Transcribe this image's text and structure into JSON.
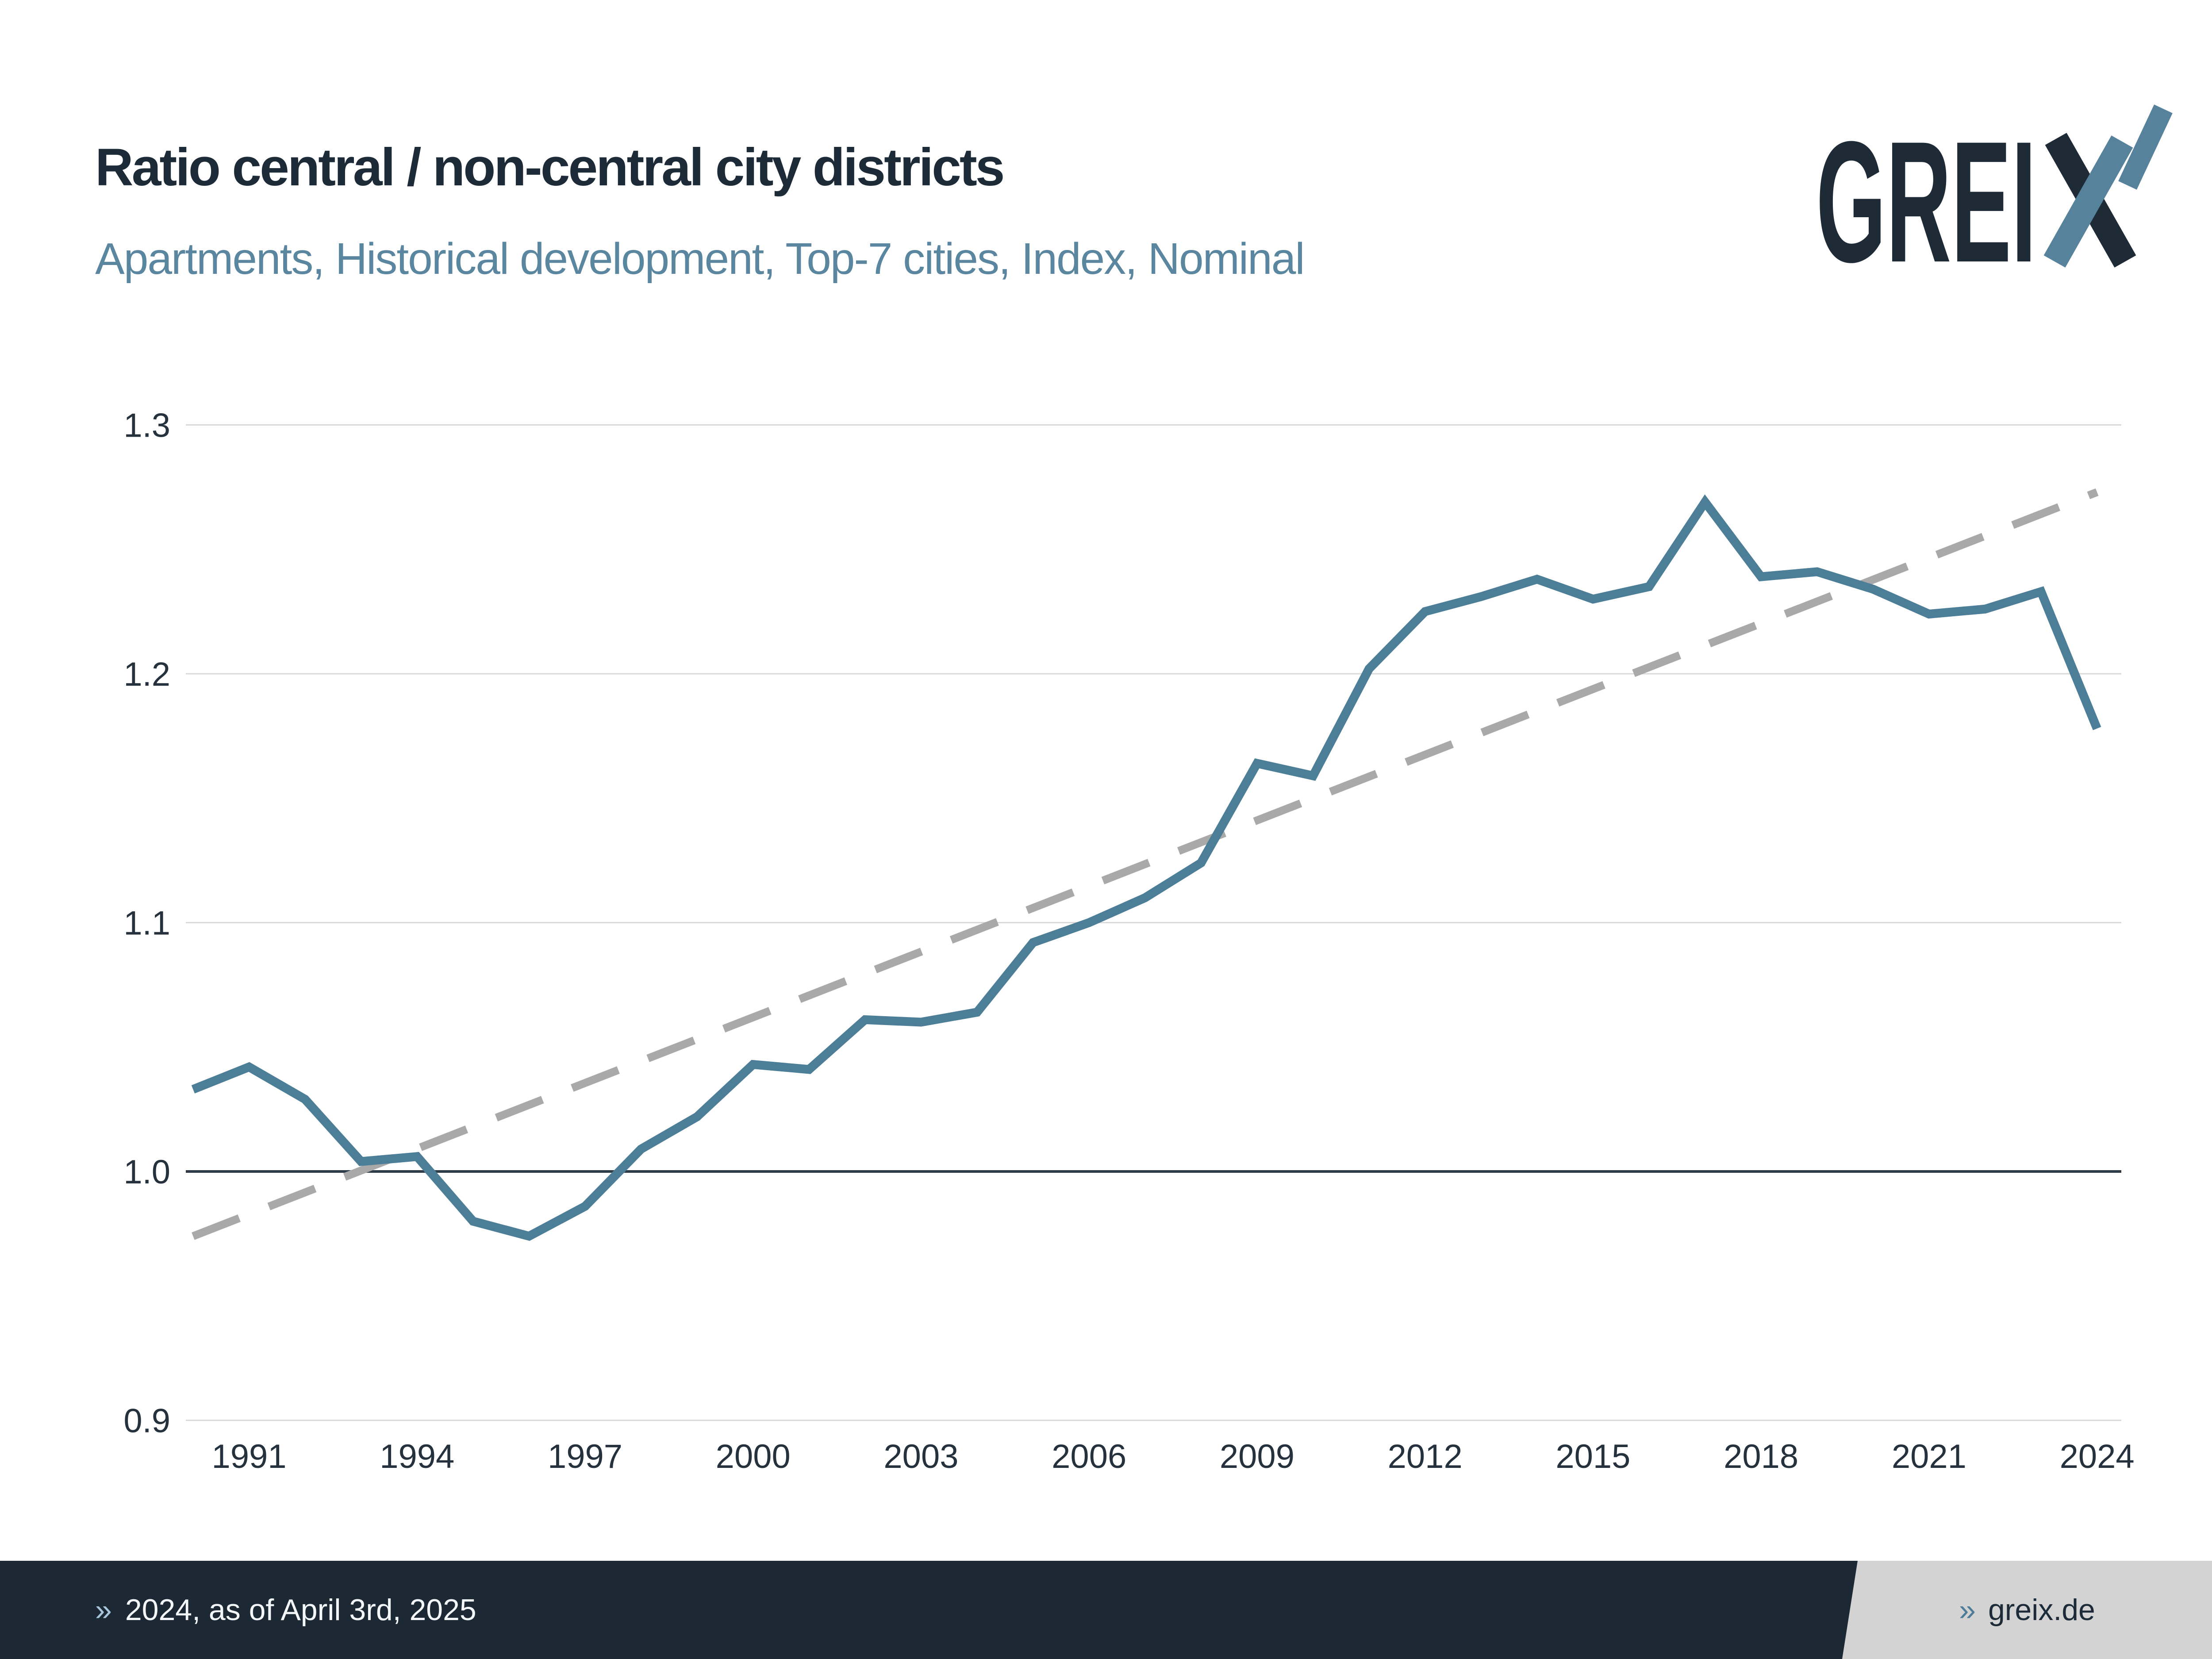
{
  "header": {
    "title": "Ratio central / non-central city districts",
    "subtitle": "Apartments, Historical development, Top-7 cities, Index, Nominal"
  },
  "logo": {
    "brand": "GREIX",
    "text_part": "GREI",
    "dark_color": "#1e2a36",
    "accent_color": "#56829b"
  },
  "chart_data": {
    "type": "line",
    "title": "Ratio central / non-central city districts",
    "xlabel": "",
    "ylabel": "",
    "x": [
      1990,
      1991,
      1992,
      1993,
      1994,
      1995,
      1996,
      1997,
      1998,
      1999,
      2000,
      2001,
      2002,
      2003,
      2004,
      2005,
      2006,
      2007,
      2008,
      2009,
      2010,
      2011,
      2012,
      2013,
      2014,
      2015,
      2016,
      2017,
      2018,
      2019,
      2020,
      2021,
      2022,
      2023,
      2024
    ],
    "series": [
      {
        "name": "Ratio central / non-central (index)",
        "color": "#4d7e97",
        "values": [
          1.033,
          1.042,
          1.029,
          1.004,
          1.006,
          0.98,
          0.974,
          0.986,
          1.009,
          1.022,
          1.043,
          1.041,
          1.061,
          1.06,
          1.064,
          1.092,
          1.1,
          1.11,
          1.124,
          1.164,
          1.159,
          1.202,
          1.225,
          1.231,
          1.238,
          1.23,
          1.235,
          1.269,
          1.239,
          1.241,
          1.234,
          1.224,
          1.226,
          1.233,
          1.178
        ]
      }
    ],
    "trend": {
      "name": "Linear trend",
      "style": "dashed",
      "color": "#a9a9a9",
      "x": [
        1990,
        2024
      ],
      "values": [
        0.974,
        1.273
      ]
    },
    "xticks": [
      1991,
      1994,
      1997,
      2000,
      2003,
      2006,
      2009,
      2012,
      2015,
      2018,
      2021,
      2024
    ],
    "yticks": [
      "0.9",
      "1.0",
      "1.1",
      "1.2",
      "1.3"
    ],
    "baseline": "1.0",
    "ylim": [
      0.88,
      1.325
    ],
    "grid": true,
    "legend": "none"
  },
  "footer": {
    "left_marker": "»",
    "left_text": "2024, as of April 3rd, 2025",
    "right_marker": "»",
    "right_text": "greix.de"
  },
  "colors": {
    "title": "#1d2b38",
    "subtitle": "#5a86a0",
    "grid": "#d9d9d9",
    "baseline_grid": "#2f3c48",
    "footer_bg": "#1c2833",
    "footer_panel": "#d3d3d3",
    "footer_marker_left": "#a7c6db",
    "footer_marker_right": "#4d7c99"
  }
}
